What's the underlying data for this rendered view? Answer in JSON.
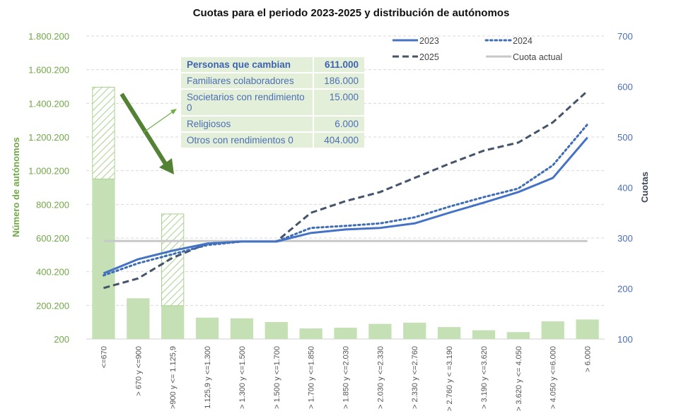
{
  "chart_data": {
    "type": "bar+line",
    "title": "Cuotas para el periodo 2023-2025 y distribución de autónomos",
    "ylabel_left": "Número de autónomos",
    "ylabel_right": "Cuotas",
    "xlabel": "",
    "grid": true,
    "legend_position": "top-right",
    "ylim_left": [
      200,
      1800200
    ],
    "ylim_right": [
      100,
      700
    ],
    "left_ticks": [
      "200",
      "200.200",
      "400.200",
      "600.200",
      "800.200",
      "1.000.200",
      "1.200.200",
      "1.400.200",
      "1.600.200",
      "1.800.200"
    ],
    "left_tick_values": [
      200,
      200200,
      400200,
      600200,
      800200,
      1000200,
      1200200,
      1400200,
      1600200,
      1800200
    ],
    "right_ticks": [
      "100",
      "200",
      "300",
      "400",
      "500",
      "600",
      "700"
    ],
    "right_tick_values": [
      100,
      200,
      300,
      400,
      500,
      600,
      700
    ],
    "categories": [
      "<=670",
      "> 670 y <=900",
      ">900 y <= 1.125,9",
      "1.125,9 y <=1.300",
      "> 1.300 y <=1.500",
      "> 1.500 y <=1.700",
      "> 1.700 y <=1.850",
      "> 1.850 y <=2.030",
      "> 2.030 y <=2.330",
      "> 2.330 y <=2.760",
      "> 2.760 y < =3.190",
      "> 3.190 y <=3.620",
      "> 3.620 y <= 4.050",
      "> 4.050 y <=6.000",
      "> 6.000"
    ],
    "bars": {
      "name": "Número de autónomos",
      "color": "#c5e0b4",
      "values": [
        951000,
        242000,
        198000,
        127000,
        123000,
        101000,
        63000,
        67000,
        90000,
        97000,
        71000,
        52000,
        41000,
        105000,
        116000
      ]
    },
    "hatched_bars": {
      "name": "Personas que cambian",
      "color": "#a9d18e",
      "values": [
        545000,
        0,
        545000,
        0,
        0,
        0,
        0,
        0,
        0,
        0,
        0,
        0,
        0,
        0,
        0
      ]
    },
    "series": [
      {
        "name": "2023",
        "style": "solid",
        "color": "#4472c4",
        "values": [
          230,
          258,
          275,
          289,
          293,
          293,
          310,
          317,
          320,
          329,
          350,
          370,
          391,
          419,
          499
        ]
      },
      {
        "name": "2024",
        "style": "dotted",
        "color": "#3e6db5",
        "values": [
          226,
          250,
          268,
          286,
          293,
          293,
          320,
          324,
          329,
          341,
          362,
          381,
          398,
          444,
          525
        ]
      },
      {
        "name": "2025",
        "style": "dashed",
        "color": "#44546a",
        "values": [
          201,
          220,
          261,
          289,
          293,
          293,
          350,
          373,
          391,
          419,
          447,
          473,
          489,
          529,
          591
        ]
      },
      {
        "name": "Cuota actual",
        "style": "solid",
        "color": "#c8c8c8",
        "values": [
          294,
          294,
          294,
          294,
          294,
          294,
          294,
          294,
          294,
          294,
          294,
          294,
          294,
          294,
          294
        ]
      }
    ],
    "annotation_table": {
      "header": {
        "label": "Personas que cambian",
        "value": "611.000"
      },
      "rows": [
        {
          "label": "Familiares colaboradores",
          "value": "186.000"
        },
        {
          "label": "Societarios con rendimiento 0",
          "value": "15.000"
        },
        {
          "label": "Religiosos",
          "value": "6.000"
        },
        {
          "label": "Otros con rendimientos 0",
          "value": "404.000"
        }
      ]
    }
  }
}
